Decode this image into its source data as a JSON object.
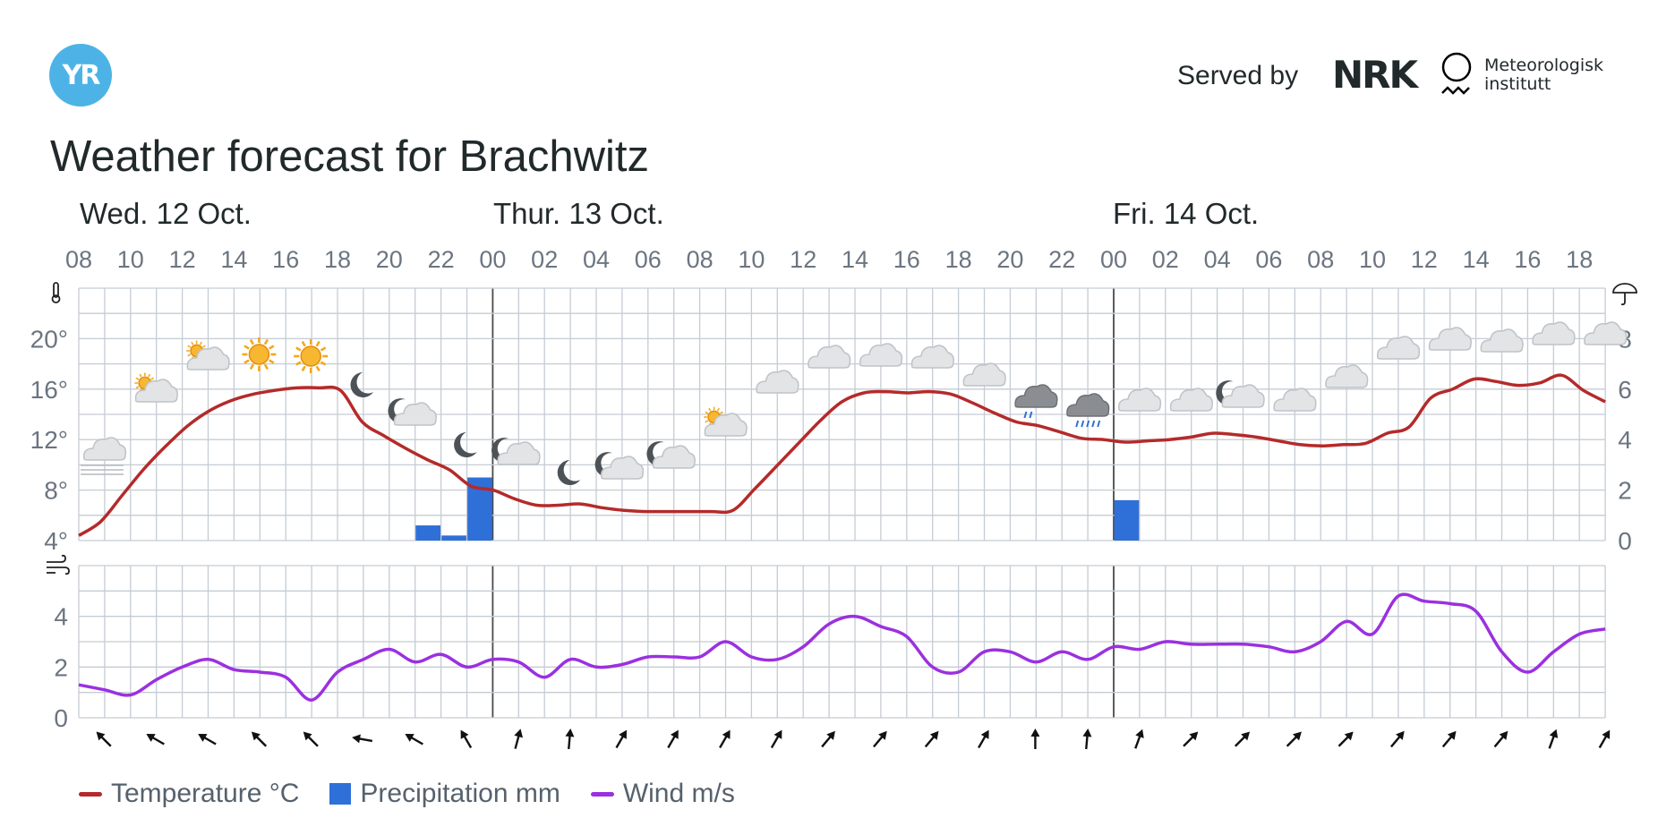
{
  "header": {
    "logo_text": "YR",
    "served_by": "Served by",
    "nrk_logo_text": "NRK",
    "met_line1": "Meteorologisk",
    "met_line2": "institutt",
    "title": "Weather forecast for Brachwitz"
  },
  "days": [
    "Wed. 12 Oct.",
    "Thur. 13 Oct.",
    "Fri. 14 Oct."
  ],
  "legend": {
    "temperature": "Temperature °C",
    "precipitation": "Precipitation mm",
    "wind": "Wind m/s"
  },
  "colors": {
    "temperature": "#b52a2a",
    "precipitation": "#2f6fd8",
    "wind": "#9b30e0",
    "grid": "#c5ccd4",
    "logo": "#4db3e6"
  },
  "chart_data": [
    {
      "type": "line",
      "title": "",
      "start_time": "Wed 12 Oct 08:00",
      "x_step_hours": 1,
      "x_tick_labels": [
        "08",
        "10",
        "12",
        "14",
        "16",
        "18",
        "20",
        "22",
        "00",
        "02",
        "04",
        "06",
        "08",
        "10",
        "12",
        "14",
        "16",
        "18",
        "20",
        "22",
        "00",
        "02",
        "04",
        "06",
        "08",
        "10",
        "12",
        "14",
        "16",
        "18"
      ],
      "y_left_ticks": [
        "4°",
        "8°",
        "12°",
        "16°",
        "20°"
      ],
      "y_left_range": [
        4,
        24
      ],
      "y_right_ticks": [
        "0",
        "2",
        "4",
        "6",
        "8"
      ],
      "y_right_range": [
        0,
        10
      ],
      "series": [
        {
          "name": "Temperature °C",
          "axis": "left",
          "values": [
            4.4,
            5.5,
            7.6,
            9.7,
            11.5,
            13.1,
            14.3,
            15.1,
            15.6,
            15.9,
            16.1,
            16.1,
            15.9,
            13.4,
            12.3,
            11.3,
            10.4,
            9.6,
            8.3,
            8.0,
            7.3,
            6.8,
            6.8,
            6.9,
            6.6,
            6.4,
            6.3,
            6.3,
            6.3,
            6.3,
            6.4,
            8.1,
            9.9,
            11.7,
            13.5,
            15.0,
            15.7,
            15.8,
            15.7,
            15.8,
            15.6,
            14.9,
            14.1,
            13.4,
            13.1,
            12.6,
            12.1,
            12.0,
            11.8,
            11.9,
            12.0,
            12.2,
            12.5,
            12.4,
            12.2,
            11.9,
            11.6,
            11.5,
            11.6,
            11.7,
            12.5,
            13.0,
            15.3,
            16.0,
            16.8,
            16.6,
            16.3,
            16.5,
            17.1,
            15.9,
            15.0
          ]
        },
        {
          "name": "Precipitation mm",
          "type": "bar",
          "axis": "right",
          "values": [
            {
              "hour": "21",
              "value": 0.6
            },
            {
              "hour": "22",
              "value": 0.2
            },
            {
              "hour": "23",
              "value": 2.5
            },
            {
              "hour": "00",
              "value": 1.6
            }
          ]
        }
      ],
      "weather_icons": [
        "fog",
        "partly-cloudy-day",
        "partly-cloudy-day",
        "sun",
        "sun",
        "moon",
        "partly-cloudy-night",
        "moon",
        "partly-cloudy-night",
        "moon",
        "partly-cloudy-night",
        "partly-cloudy-night",
        "partly-cloudy-day",
        "cloud",
        "cloud",
        "cloud",
        "cloud",
        "cloud",
        "light-rain",
        "rain",
        "cloud",
        "cloud",
        "partly-cloudy-night",
        "cloud",
        "cloud",
        "cloud",
        "cloud",
        "cloud",
        "cloud",
        "cloud"
      ]
    },
    {
      "type": "line",
      "y_ticks": [
        "0",
        "2",
        "4"
      ],
      "y_range": [
        0,
        6
      ],
      "series": [
        {
          "name": "Wind m/s",
          "values": [
            1.3,
            1.1,
            0.9,
            1.5,
            2.0,
            2.3,
            1.9,
            1.8,
            1.6,
            0.7,
            1.8,
            2.3,
            2.7,
            2.2,
            2.5,
            2.0,
            2.3,
            2.2,
            1.6,
            2.3,
            2.0,
            2.1,
            2.4,
            2.4,
            2.4,
            3.0,
            2.4,
            2.3,
            2.8,
            3.7,
            4.0,
            3.6,
            3.2,
            2.0,
            1.8,
            2.6,
            2.6,
            2.2,
            2.6,
            2.3,
            2.8,
            2.7,
            3.0,
            2.9,
            2.9,
            2.9,
            2.8,
            2.6,
            3.0,
            3.8,
            3.3,
            4.8,
            4.6,
            4.5,
            4.2,
            2.6,
            1.8,
            2.6,
            3.3,
            3.5
          ]
        }
      ],
      "wind_direction_degrees": [
        315,
        300,
        300,
        315,
        315,
        280,
        300,
        330,
        15,
        5,
        30,
        30,
        30,
        30,
        40,
        40,
        40,
        30,
        0,
        5,
        20,
        45,
        45,
        45,
        45,
        40,
        40,
        40,
        20,
        30
      ]
    }
  ]
}
